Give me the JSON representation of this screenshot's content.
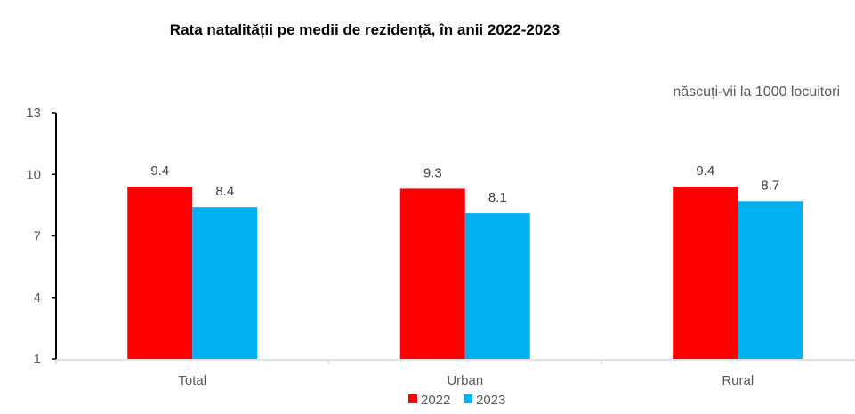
{
  "chart_data": {
    "type": "bar",
    "title": "Rata natalității pe medii de rezidență, în anii 2022-2023",
    "unit_label": "născuți-vii la 1000 locuitori",
    "categories": [
      "Total",
      "Urban",
      "Rural"
    ],
    "series": [
      {
        "name": "2022",
        "values": [
          9.4,
          9.3,
          9.4
        ],
        "color": "#FF0000"
      },
      {
        "name": "2023",
        "values": [
          8.4,
          8.1,
          8.7
        ],
        "color": "#00B0F0"
      }
    ],
    "yticks": [
      "1",
      "4",
      "7",
      "10",
      "13"
    ],
    "ylim": [
      1,
      13
    ],
    "grid": false,
    "legend_position": "bottom",
    "data_labels": [
      "9.4",
      "9.3",
      "9.4",
      "8.4",
      "8.1",
      "8.7"
    ]
  }
}
